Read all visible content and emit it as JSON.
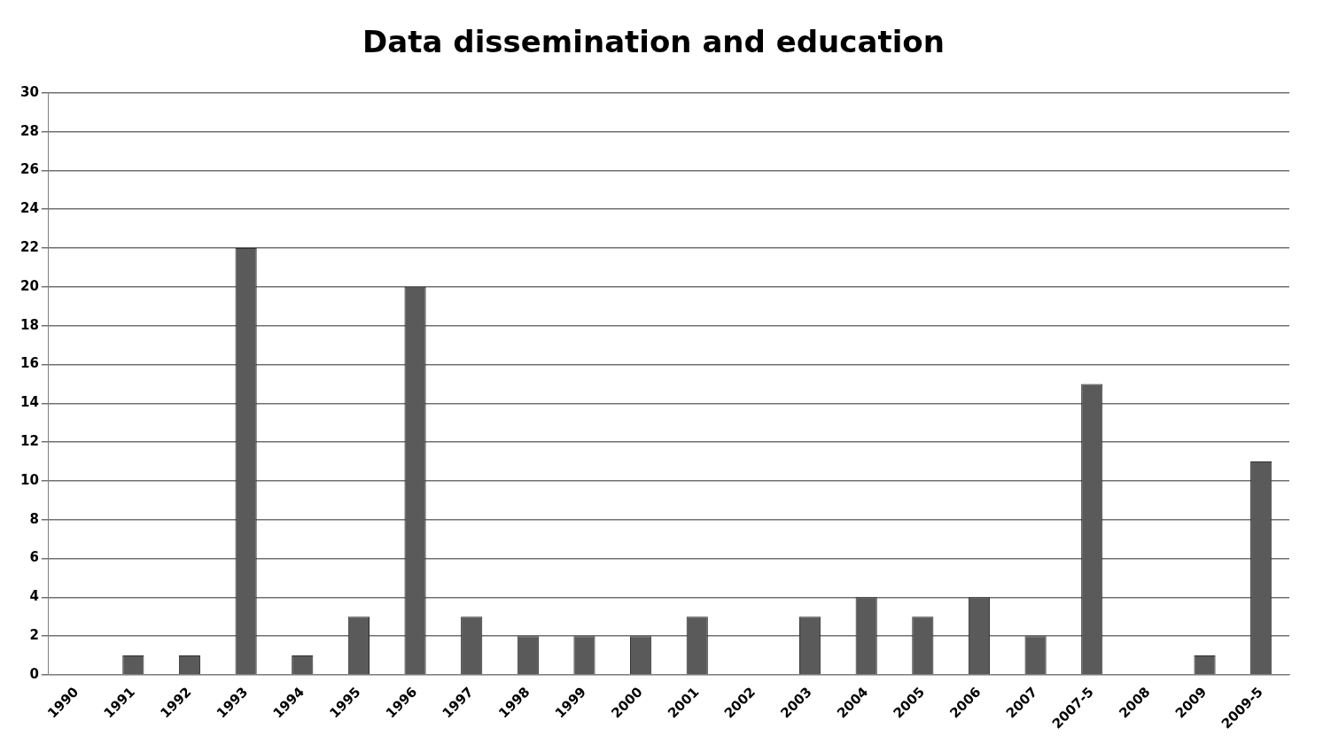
{
  "chart_data": {
    "type": "bar",
    "title": "Data dissemination and education",
    "categories": [
      "1990",
      "1991",
      "1992",
      "1993",
      "1994",
      "1995",
      "1996",
      "1997",
      "1998",
      "1999",
      "2000",
      "2001",
      "2002",
      "2003",
      "2004",
      "2005",
      "2006",
      "2007",
      "2007-5",
      "2008",
      "2009",
      "2009-5"
    ],
    "values": [
      0,
      1,
      1,
      22,
      1,
      3,
      20,
      3,
      2,
      2,
      2,
      3,
      0,
      3,
      4,
      3,
      4,
      2,
      15,
      0,
      1,
      11
    ],
    "color": "#5a5a5a",
    "ylim": [
      0,
      30
    ],
    "yticks": [
      0,
      2,
      4,
      6,
      8,
      10,
      12,
      14,
      16,
      18,
      20,
      22,
      24,
      26,
      28,
      30
    ],
    "grid": true
  }
}
